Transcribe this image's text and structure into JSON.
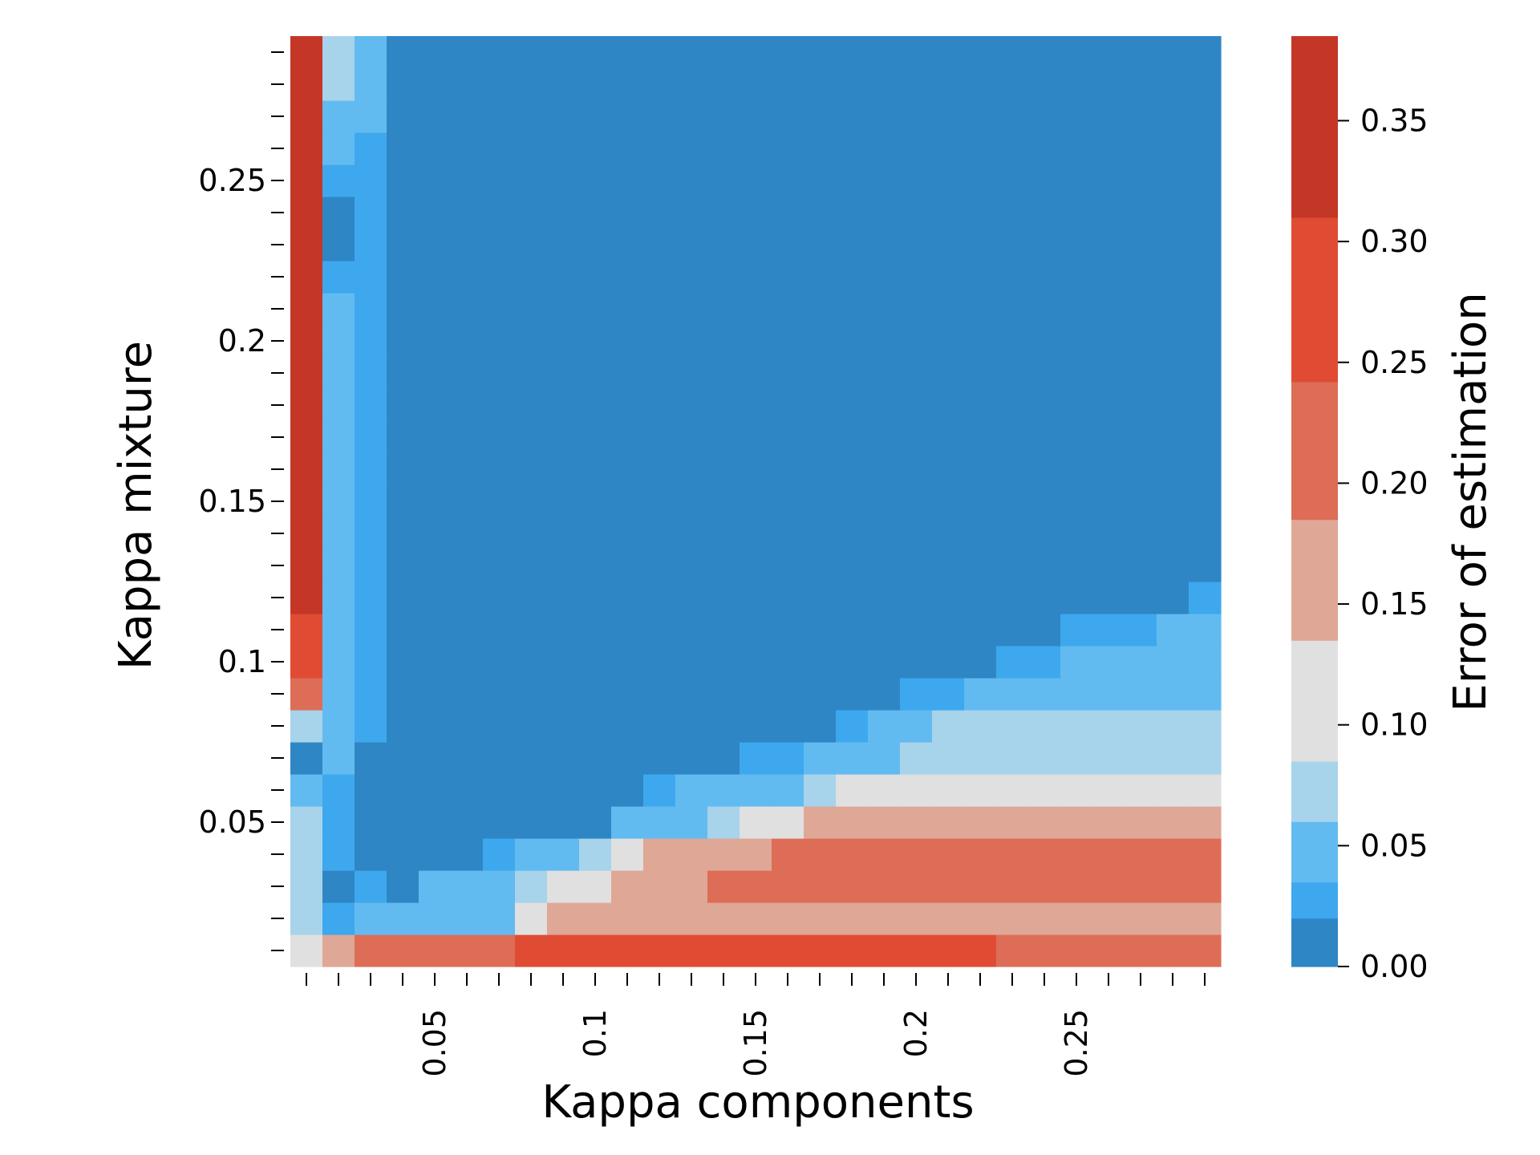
{
  "chart_data": {
    "type": "heatmap",
    "title": "",
    "xlabel": "Kappa components",
    "ylabel": "Kappa mixture",
    "x_range": [
      0.005,
      0.295
    ],
    "y_range": [
      0.005,
      0.295
    ],
    "cell_step": 0.01,
    "x_tick_labels": [
      {
        "value": 0.05,
        "label": "0.05"
      },
      {
        "value": 0.1,
        "label": "0.1"
      },
      {
        "value": 0.15,
        "label": "0.15"
      },
      {
        "value": 0.2,
        "label": "0.2"
      },
      {
        "value": 0.25,
        "label": "0.25"
      }
    ],
    "y_tick_labels": [
      {
        "value": 0.05,
        "label": "0.05"
      },
      {
        "value": 0.1,
        "label": "0.1"
      },
      {
        "value": 0.15,
        "label": "0.15"
      },
      {
        "value": 0.2,
        "label": "0.2"
      },
      {
        "value": 0.25,
        "label": "0.25"
      }
    ],
    "colorbar": {
      "label": "Error of estimation",
      "range": [
        0,
        0.385
      ],
      "ticks": [
        {
          "value": 0.0,
          "label": "0.00"
        },
        {
          "value": 0.05,
          "label": "0.05"
        },
        {
          "value": 0.1,
          "label": "0.10"
        },
        {
          "value": 0.15,
          "label": "0.15"
        },
        {
          "value": 0.2,
          "label": "0.20"
        },
        {
          "value": 0.25,
          "label": "0.25"
        },
        {
          "value": 0.3,
          "label": "0.30"
        },
        {
          "value": 0.35,
          "label": "0.35"
        }
      ],
      "color_levels": [
        {
          "upper": 0.02,
          "color": "#2f86c5"
        },
        {
          "upper": 0.035,
          "color": "#3ea8ee"
        },
        {
          "upper": 0.06,
          "color": "#62bbf0"
        },
        {
          "upper": 0.085,
          "color": "#a7d3eb"
        },
        {
          "upper": 0.135,
          "color": "#e0e0e0"
        },
        {
          "upper": 0.185,
          "color": "#dfa796"
        },
        {
          "upper": 0.242,
          "color": "#dd6d56"
        },
        {
          "upper": 0.31,
          "color": "#e04c33"
        },
        {
          "upper": 0.385,
          "color": "#c43727"
        }
      ]
    },
    "row_y_values_bottom_to_top": [
      0.01,
      0.02,
      0.03,
      0.04,
      0.05,
      0.06,
      0.07,
      0.08,
      0.09,
      0.1,
      0.11,
      0.12,
      0.13,
      0.14,
      0.15,
      0.16,
      0.17,
      0.18,
      0.19,
      0.2,
      0.21,
      0.22,
      0.23,
      0.24,
      0.25,
      0.26,
      0.27,
      0.28,
      0.29
    ],
    "col_x_values": [
      0.01,
      0.02,
      0.03,
      0.04,
      0.05,
      0.06,
      0.07,
      0.08,
      0.09,
      0.1,
      0.11,
      0.12,
      0.13,
      0.14,
      0.15,
      0.16,
      0.17,
      0.18,
      0.19,
      0.2,
      0.21,
      0.22,
      0.23,
      0.24,
      0.25,
      0.26,
      0.27,
      0.28,
      0.29
    ],
    "values_rows_bottom_to_top": [
      [
        0.11,
        0.16,
        0.21,
        0.21,
        0.21,
        0.21,
        0.21,
        0.27,
        0.27,
        0.27,
        0.27,
        0.27,
        0.27,
        0.27,
        0.27,
        0.27,
        0.27,
        0.27,
        0.27,
        0.27,
        0.27,
        0.27,
        0.21,
        0.21,
        0.21,
        0.21,
        0.21,
        0.21,
        0.21
      ],
      [
        0.07,
        0.03,
        0.05,
        0.05,
        0.05,
        0.05,
        0.05,
        0.11,
        0.16,
        0.16,
        0.16,
        0.16,
        0.16,
        0.16,
        0.16,
        0.16,
        0.16,
        0.16,
        0.16,
        0.16,
        0.16,
        0.16,
        0.16,
        0.16,
        0.16,
        0.16,
        0.16,
        0.16,
        0.16
      ],
      [
        0.07,
        0.01,
        0.03,
        0.01,
        0.05,
        0.05,
        0.05,
        0.07,
        0.11,
        0.11,
        0.16,
        0.16,
        0.16,
        0.21,
        0.21,
        0.21,
        0.21,
        0.21,
        0.21,
        0.21,
        0.21,
        0.21,
        0.21,
        0.21,
        0.21,
        0.21,
        0.21,
        0.21,
        0.21
      ],
      [
        0.07,
        0.03,
        0.01,
        0.01,
        0.01,
        0.01,
        0.03,
        0.05,
        0.05,
        0.07,
        0.11,
        0.16,
        0.16,
        0.16,
        0.16,
        0.21,
        0.21,
        0.21,
        0.21,
        0.21,
        0.21,
        0.21,
        0.21,
        0.21,
        0.21,
        0.21,
        0.21,
        0.21,
        0.21
      ],
      [
        0.07,
        0.03,
        0.01,
        0.01,
        0.01,
        0.01,
        0.01,
        0.01,
        0.01,
        0.01,
        0.05,
        0.05,
        0.05,
        0.07,
        0.11,
        0.11,
        0.16,
        0.16,
        0.16,
        0.16,
        0.16,
        0.16,
        0.16,
        0.16,
        0.16,
        0.16,
        0.16,
        0.16,
        0.16
      ],
      [
        0.05,
        0.03,
        0.01,
        0.01,
        0.01,
        0.01,
        0.01,
        0.01,
        0.01,
        0.01,
        0.01,
        0.03,
        0.05,
        0.05,
        0.05,
        0.05,
        0.07,
        0.11,
        0.11,
        0.11,
        0.11,
        0.11,
        0.11,
        0.11,
        0.11,
        0.11,
        0.11,
        0.11,
        0.11
      ],
      [
        0.01,
        0.05,
        0.01,
        0.01,
        0.01,
        0.01,
        0.01,
        0.01,
        0.01,
        0.01,
        0.01,
        0.01,
        0.01,
        0.01,
        0.03,
        0.03,
        0.05,
        0.05,
        0.05,
        0.07,
        0.07,
        0.07,
        0.07,
        0.07,
        0.07,
        0.07,
        0.07,
        0.07,
        0.07
      ],
      [
        0.07,
        0.05,
        0.03,
        0.01,
        0.01,
        0.01,
        0.01,
        0.01,
        0.01,
        0.01,
        0.01,
        0.01,
        0.01,
        0.01,
        0.01,
        0.01,
        0.01,
        0.03,
        0.05,
        0.05,
        0.07,
        0.07,
        0.07,
        0.07,
        0.07,
        0.07,
        0.07,
        0.07,
        0.07
      ],
      [
        0.21,
        0.05,
        0.03,
        0.01,
        0.01,
        0.01,
        0.01,
        0.01,
        0.01,
        0.01,
        0.01,
        0.01,
        0.01,
        0.01,
        0.01,
        0.01,
        0.01,
        0.01,
        0.01,
        0.03,
        0.03,
        0.05,
        0.05,
        0.05,
        0.05,
        0.05,
        0.05,
        0.05,
        0.05
      ],
      [
        0.27,
        0.05,
        0.03,
        0.01,
        0.01,
        0.01,
        0.01,
        0.01,
        0.01,
        0.01,
        0.01,
        0.01,
        0.01,
        0.01,
        0.01,
        0.01,
        0.01,
        0.01,
        0.01,
        0.01,
        0.01,
        0.01,
        0.03,
        0.03,
        0.05,
        0.05,
        0.05,
        0.05,
        0.05
      ],
      [
        0.27,
        0.05,
        0.03,
        0.01,
        0.01,
        0.01,
        0.01,
        0.01,
        0.01,
        0.01,
        0.01,
        0.01,
        0.01,
        0.01,
        0.01,
        0.01,
        0.01,
        0.01,
        0.01,
        0.01,
        0.01,
        0.01,
        0.01,
        0.01,
        0.03,
        0.03,
        0.03,
        0.05,
        0.05
      ],
      [
        0.35,
        0.05,
        0.03,
        0.01,
        0.01,
        0.01,
        0.01,
        0.01,
        0.01,
        0.01,
        0.01,
        0.01,
        0.01,
        0.01,
        0.01,
        0.01,
        0.01,
        0.01,
        0.01,
        0.01,
        0.01,
        0.01,
        0.01,
        0.01,
        0.01,
        0.01,
        0.01,
        0.01,
        0.03
      ],
      [
        0.35,
        0.05,
        0.03,
        0.01,
        0.01,
        0.01,
        0.01,
        0.01,
        0.01,
        0.01,
        0.01,
        0.01,
        0.01,
        0.01,
        0.01,
        0.01,
        0.01,
        0.01,
        0.01,
        0.01,
        0.01,
        0.01,
        0.01,
        0.01,
        0.01,
        0.01,
        0.01,
        0.01,
        0.01
      ],
      [
        0.35,
        0.05,
        0.03,
        0.01,
        0.01,
        0.01,
        0.01,
        0.01,
        0.01,
        0.01,
        0.01,
        0.01,
        0.01,
        0.01,
        0.01,
        0.01,
        0.01,
        0.01,
        0.01,
        0.01,
        0.01,
        0.01,
        0.01,
        0.01,
        0.01,
        0.01,
        0.01,
        0.01,
        0.01
      ],
      [
        0.35,
        0.05,
        0.03,
        0.01,
        0.01,
        0.01,
        0.01,
        0.01,
        0.01,
        0.01,
        0.01,
        0.01,
        0.01,
        0.01,
        0.01,
        0.01,
        0.01,
        0.01,
        0.01,
        0.01,
        0.01,
        0.01,
        0.01,
        0.01,
        0.01,
        0.01,
        0.01,
        0.01,
        0.01
      ],
      [
        0.35,
        0.05,
        0.03,
        0.01,
        0.01,
        0.01,
        0.01,
        0.01,
        0.01,
        0.01,
        0.01,
        0.01,
        0.01,
        0.01,
        0.01,
        0.01,
        0.01,
        0.01,
        0.01,
        0.01,
        0.01,
        0.01,
        0.01,
        0.01,
        0.01,
        0.01,
        0.01,
        0.01,
        0.01
      ],
      [
        0.35,
        0.05,
        0.03,
        0.01,
        0.01,
        0.01,
        0.01,
        0.01,
        0.01,
        0.01,
        0.01,
        0.01,
        0.01,
        0.01,
        0.01,
        0.01,
        0.01,
        0.01,
        0.01,
        0.01,
        0.01,
        0.01,
        0.01,
        0.01,
        0.01,
        0.01,
        0.01,
        0.01,
        0.01
      ],
      [
        0.35,
        0.05,
        0.03,
        0.01,
        0.01,
        0.01,
        0.01,
        0.01,
        0.01,
        0.01,
        0.01,
        0.01,
        0.01,
        0.01,
        0.01,
        0.01,
        0.01,
        0.01,
        0.01,
        0.01,
        0.01,
        0.01,
        0.01,
        0.01,
        0.01,
        0.01,
        0.01,
        0.01,
        0.01
      ],
      [
        0.35,
        0.05,
        0.03,
        0.01,
        0.01,
        0.01,
        0.01,
        0.01,
        0.01,
        0.01,
        0.01,
        0.01,
        0.01,
        0.01,
        0.01,
        0.01,
        0.01,
        0.01,
        0.01,
        0.01,
        0.01,
        0.01,
        0.01,
        0.01,
        0.01,
        0.01,
        0.01,
        0.01,
        0.01
      ],
      [
        0.35,
        0.05,
        0.03,
        0.01,
        0.01,
        0.01,
        0.01,
        0.01,
        0.01,
        0.01,
        0.01,
        0.01,
        0.01,
        0.01,
        0.01,
        0.01,
        0.01,
        0.01,
        0.01,
        0.01,
        0.01,
        0.01,
        0.01,
        0.01,
        0.01,
        0.01,
        0.01,
        0.01,
        0.01
      ],
      [
        0.35,
        0.05,
        0.03,
        0.01,
        0.01,
        0.01,
        0.01,
        0.01,
        0.01,
        0.01,
        0.01,
        0.01,
        0.01,
        0.01,
        0.01,
        0.01,
        0.01,
        0.01,
        0.01,
        0.01,
        0.01,
        0.01,
        0.01,
        0.01,
        0.01,
        0.01,
        0.01,
        0.01,
        0.01
      ],
      [
        0.35,
        0.03,
        0.03,
        0.01,
        0.01,
        0.01,
        0.01,
        0.01,
        0.01,
        0.01,
        0.01,
        0.01,
        0.01,
        0.01,
        0.01,
        0.01,
        0.01,
        0.01,
        0.01,
        0.01,
        0.01,
        0.01,
        0.01,
        0.01,
        0.01,
        0.01,
        0.01,
        0.01,
        0.01
      ],
      [
        0.35,
        0.01,
        0.03,
        0.01,
        0.01,
        0.01,
        0.01,
        0.01,
        0.01,
        0.01,
        0.01,
        0.01,
        0.01,
        0.01,
        0.01,
        0.01,
        0.01,
        0.01,
        0.01,
        0.01,
        0.01,
        0.01,
        0.01,
        0.01,
        0.01,
        0.01,
        0.01,
        0.01,
        0.01
      ],
      [
        0.35,
        0.01,
        0.03,
        0.01,
        0.01,
        0.01,
        0.01,
        0.01,
        0.01,
        0.01,
        0.01,
        0.01,
        0.01,
        0.01,
        0.01,
        0.01,
        0.01,
        0.01,
        0.01,
        0.01,
        0.01,
        0.01,
        0.01,
        0.01,
        0.01,
        0.01,
        0.01,
        0.01,
        0.01
      ],
      [
        0.35,
        0.03,
        0.03,
        0.01,
        0.01,
        0.01,
        0.01,
        0.01,
        0.01,
        0.01,
        0.01,
        0.01,
        0.01,
        0.01,
        0.01,
        0.01,
        0.01,
        0.01,
        0.01,
        0.01,
        0.01,
        0.01,
        0.01,
        0.01,
        0.01,
        0.01,
        0.01,
        0.01,
        0.01
      ],
      [
        0.35,
        0.05,
        0.03,
        0.01,
        0.01,
        0.01,
        0.01,
        0.01,
        0.01,
        0.01,
        0.01,
        0.01,
        0.01,
        0.01,
        0.01,
        0.01,
        0.01,
        0.01,
        0.01,
        0.01,
        0.01,
        0.01,
        0.01,
        0.01,
        0.01,
        0.01,
        0.01,
        0.01,
        0.01
      ],
      [
        0.35,
        0.05,
        0.05,
        0.01,
        0.01,
        0.01,
        0.01,
        0.01,
        0.01,
        0.01,
        0.01,
        0.01,
        0.01,
        0.01,
        0.01,
        0.01,
        0.01,
        0.01,
        0.01,
        0.01,
        0.01,
        0.01,
        0.01,
        0.01,
        0.01,
        0.01,
        0.01,
        0.01,
        0.01
      ],
      [
        0.35,
        0.07,
        0.05,
        0.01,
        0.01,
        0.01,
        0.01,
        0.01,
        0.01,
        0.01,
        0.01,
        0.01,
        0.01,
        0.01,
        0.01,
        0.01,
        0.01,
        0.01,
        0.01,
        0.01,
        0.01,
        0.01,
        0.01,
        0.01,
        0.01,
        0.01,
        0.01,
        0.01,
        0.01
      ],
      [
        0.35,
        0.07,
        0.05,
        0.01,
        0.01,
        0.01,
        0.01,
        0.01,
        0.01,
        0.01,
        0.01,
        0.01,
        0.01,
        0.01,
        0.01,
        0.01,
        0.01,
        0.01,
        0.01,
        0.01,
        0.01,
        0.01,
        0.01,
        0.01,
        0.01,
        0.01,
        0.01,
        0.01,
        0.01
      ]
    ]
  }
}
